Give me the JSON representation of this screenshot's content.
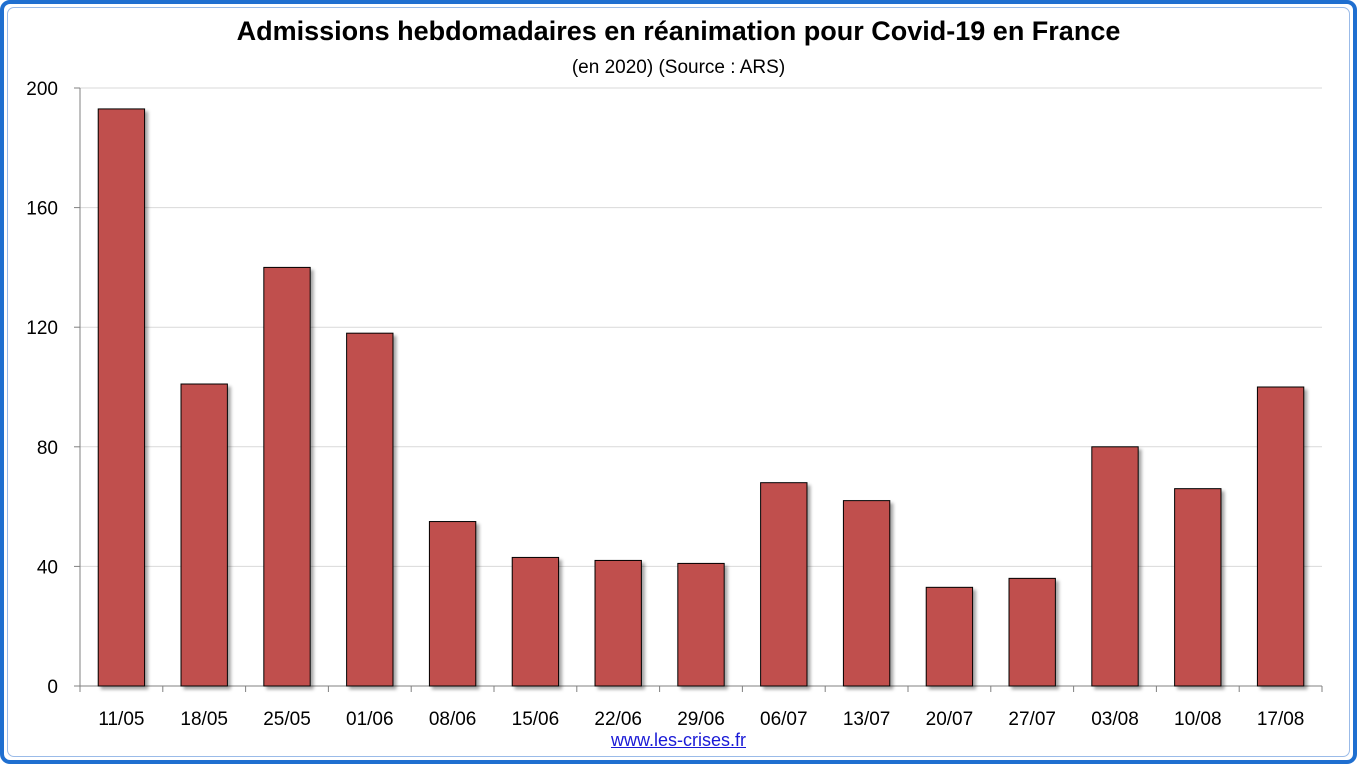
{
  "header": {
    "title": "Admissions hebdomadaires en réanimation pour Covid-19 en France",
    "subtitle": "(en 2020) (Source : ARS)"
  },
  "footer": {
    "link_text": "www.les-crises.fr"
  },
  "colors": {
    "bar": "#c0504d",
    "grid": "#d9d9d9",
    "axis": "#808080",
    "border": "#1f6fd0",
    "link": "#1a1ad6"
  },
  "chart_data": {
    "type": "bar",
    "title": "Admissions hebdomadaires en réanimation pour Covid-19 en France",
    "subtitle": "(en 2020) (Source : ARS)",
    "xlabel": "",
    "ylabel": "",
    "categories": [
      "11/05",
      "18/05",
      "25/05",
      "01/06",
      "08/06",
      "15/06",
      "22/06",
      "29/06",
      "06/07",
      "13/07",
      "20/07",
      "27/07",
      "03/08",
      "10/08",
      "17/08"
    ],
    "values": [
      193,
      101,
      140,
      118,
      55,
      43,
      42,
      41,
      68,
      62,
      33,
      36,
      80,
      66,
      100
    ],
    "ylim": [
      0,
      200
    ],
    "yticks": [
      0,
      40,
      80,
      120,
      160,
      200
    ],
    "grid": true,
    "legend": "none"
  }
}
